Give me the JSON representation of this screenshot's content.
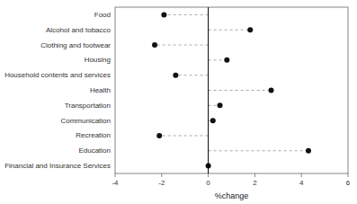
{
  "chart_data": {
    "type": "lollipop",
    "categories": [
      "Financial and Insurance Services",
      "Education",
      "Recreation",
      "Communication",
      "Transportation",
      "Health",
      "Household contents and services",
      "Housing",
      "Clothing and footwear",
      "Alcohol and tobacco",
      "Food"
    ],
    "values": [
      0.0,
      4.3,
      -2.1,
      0.2,
      0.5,
      2.7,
      -1.4,
      0.8,
      -2.3,
      1.8,
      -1.9
    ],
    "color": "#111111",
    "xlim": [
      -4,
      6
    ],
    "xticks": [
      -4,
      -2,
      0,
      2,
      4,
      6
    ],
    "xlabel": "%change",
    "grid": false
  }
}
